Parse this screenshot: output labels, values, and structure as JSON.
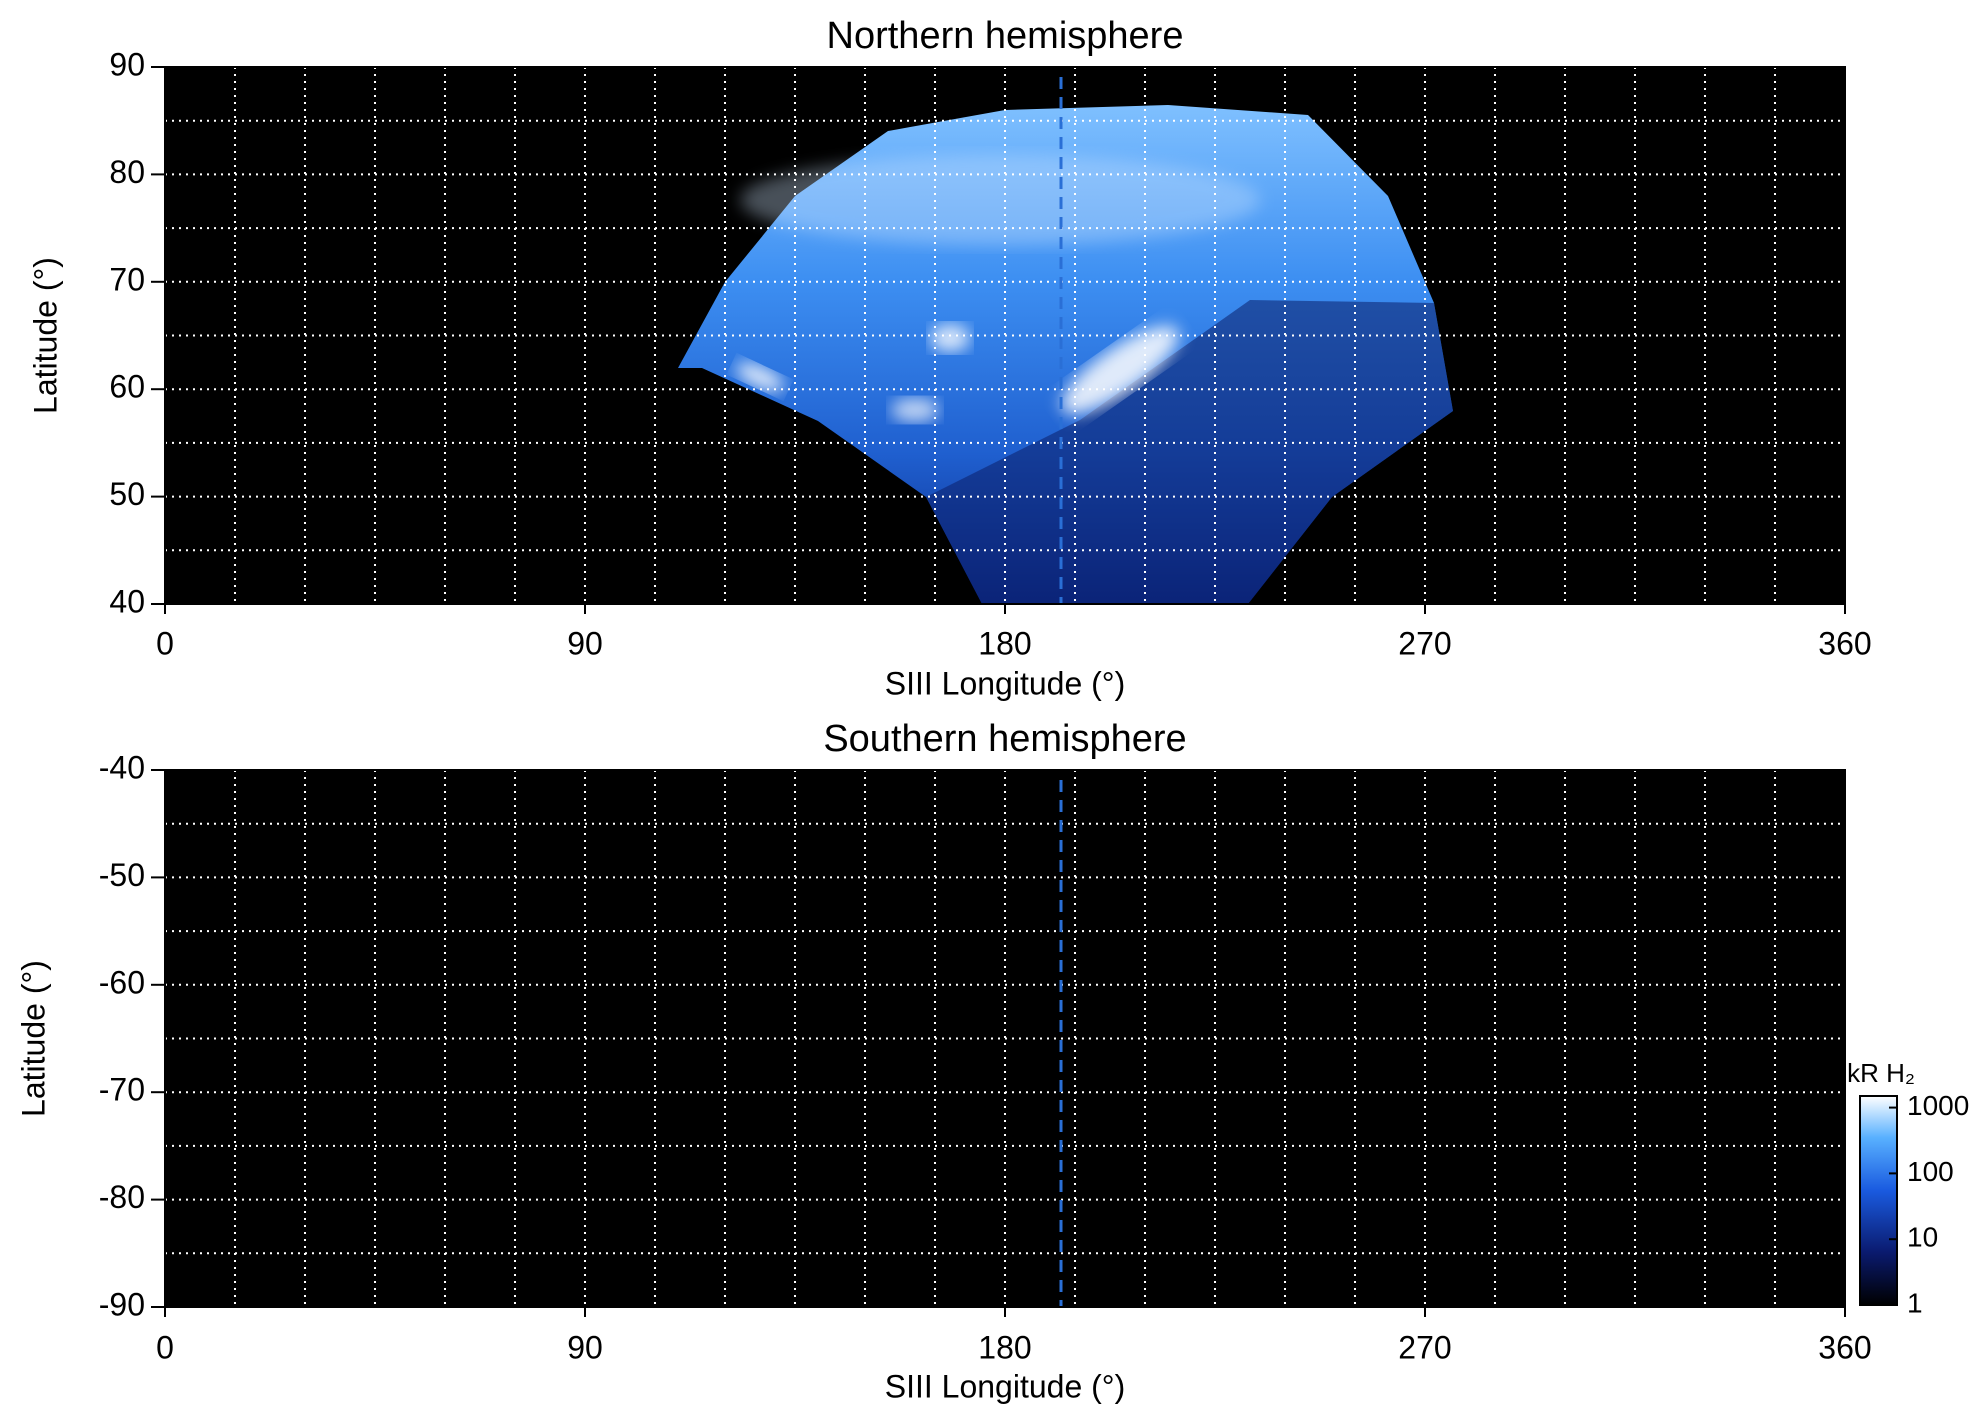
{
  "chart_data": [
    {
      "type": "heatmap",
      "title": "Northern hemisphere",
      "x_label": "SIII Longitude (°)",
      "y_label": "Latitude (°)",
      "xlim": [
        0,
        360
      ],
      "xticks": [
        0,
        90,
        180,
        270,
        360
      ],
      "ylim": [
        40,
        90
      ],
      "yticks": [
        40,
        50,
        60,
        70,
        80,
        90
      ],
      "grid": true,
      "xgrid_step": 15,
      "ygrid_step": 5,
      "vline": 192,
      "vline_color": "#2a6fd6"
    },
    {
      "type": "heatmap",
      "title": "Southern hemisphere",
      "x_label": "SIII Longitude (°)",
      "y_label": "Latitude (°)",
      "xlim": [
        0,
        360
      ],
      "xticks": [
        0,
        90,
        180,
        270,
        360
      ],
      "ylim": [
        -90,
        -40
      ],
      "yticks": [
        -90,
        -80,
        -70,
        -60,
        -50,
        -40
      ],
      "grid": true,
      "xgrid_step": 15,
      "ygrid_step": 5,
      "vline": 192,
      "vline_color": "#2a6fd6",
      "colorbar": {
        "label": "kR H₂",
        "scale": "log",
        "lim": [
          1,
          1500
        ],
        "ticks": [
          1,
          10,
          100,
          1000
        ]
      }
    }
  ]
}
